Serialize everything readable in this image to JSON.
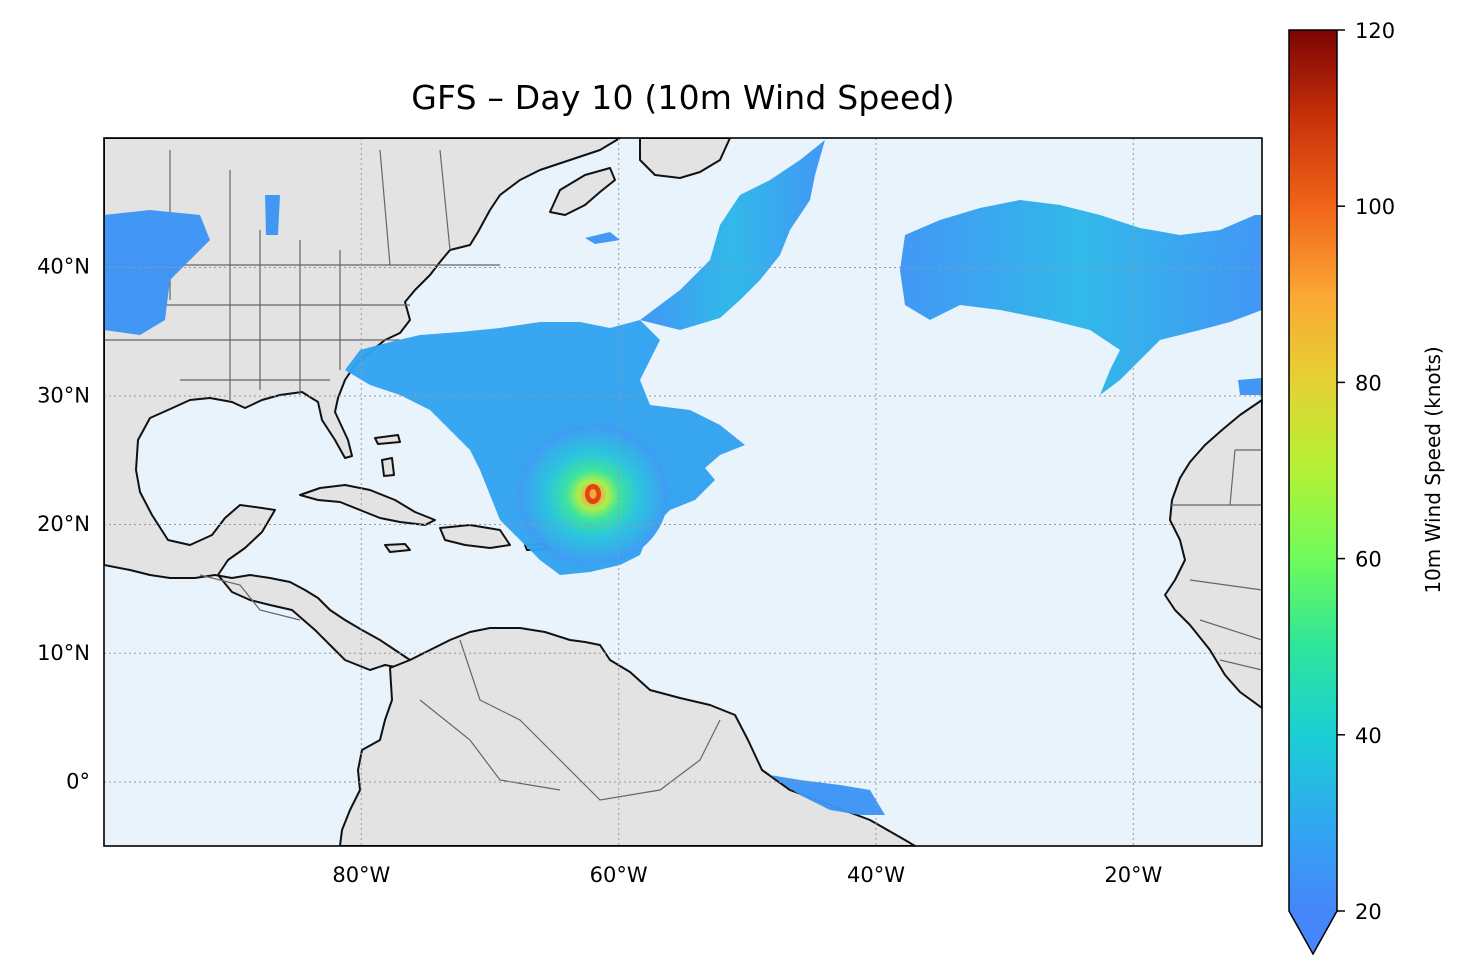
{
  "title": "GFS – Day 10 (10m Wind Speed)",
  "map": {
    "extent_lon": [
      -100,
      -10
    ],
    "extent_lat": [
      -5,
      50
    ],
    "lon_ticks": [
      {
        "value": -80,
        "label": "80°W"
      },
      {
        "value": -60,
        "label": "60°W"
      },
      {
        "value": -40,
        "label": "40°W"
      },
      {
        "value": -20,
        "label": "20°W"
      }
    ],
    "lat_ticks": [
      {
        "value": 40,
        "label": "40°N"
      },
      {
        "value": 30,
        "label": "30°N"
      },
      {
        "value": 20,
        "label": "20°N"
      },
      {
        "value": 10,
        "label": "10°N"
      },
      {
        "value": 0,
        "label": "0°"
      }
    ],
    "ocean_color": "#e8f3fc",
    "land_color": "#e3e3e3",
    "wind_features": [
      {
        "name": "hurricane",
        "center": [
          -62,
          22.2
        ],
        "peak_knots": 92
      },
      {
        "name": "subtropical-trough",
        "center": [
          -62,
          30
        ],
        "peak_knots": 35
      },
      {
        "name": "northeast-band",
        "center": [
          -48,
          44
        ],
        "peak_knots": 32
      },
      {
        "name": "eastern-atlantic-band",
        "center": [
          -25,
          40
        ],
        "peak_knots": 33
      },
      {
        "name": "central-us",
        "center": [
          -96,
          40
        ],
        "peak_knots": 25
      }
    ]
  },
  "colorbar": {
    "min": 20,
    "max": 120,
    "ticks": [
      20,
      40,
      60,
      80,
      100,
      120
    ],
    "label": "10m Wind Speed (knots)",
    "extend": "min",
    "colormap": "turbo"
  }
}
